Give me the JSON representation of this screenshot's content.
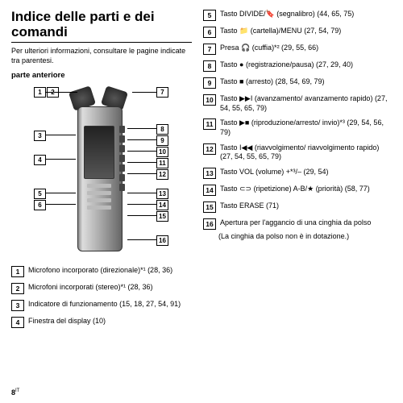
{
  "title": "Indice delle parti e dei comandi",
  "intro": "Per ulteriori informazioni, consultare le pagine indicate tra parentesi.",
  "subhead": "parte anteriore",
  "page_number": "8",
  "page_lang_mark": "IT",
  "callout_labels": [
    "1",
    "2",
    "3",
    "4",
    "5",
    "6",
    "7",
    "8",
    "9",
    "10",
    "11",
    "12",
    "13",
    "14",
    "15",
    "16"
  ],
  "left_items": [
    {
      "n": "1",
      "t": "Microfono incorporato (direzionale)*¹ (28, 36)"
    },
    {
      "n": "2",
      "t": "Microfoni incorporati (stereo)*¹ (28, 36)"
    },
    {
      "n": "3",
      "t": "Indicatore di funzionamento (15, 18, 27, 54, 91)"
    },
    {
      "n": "4",
      "t": "Finestra del display (10)"
    }
  ],
  "right_items": [
    {
      "n": "5",
      "t": "Tasto DIVIDE/🔖 (segnalibro) (44, 65, 75)"
    },
    {
      "n": "6",
      "t": "Tasto 📁 (cartella)/MENU (27, 54, 79)"
    },
    {
      "n": "7",
      "t": "Presa 🎧 (cuffia)*² (29, 55, 66)"
    },
    {
      "n": "8",
      "t": "Tasto ● (registrazione/pausa) (27, 29, 40)"
    },
    {
      "n": "9",
      "t": "Tasto ■ (arresto) (28, 54, 69, 79)"
    },
    {
      "n": "10",
      "t": "Tasto ▶▶I (avanzamento/ avanzamento rapido) (27, 54, 55, 65, 79)"
    },
    {
      "n": "11",
      "t": "Tasto ▶■ (riproduzione/arresto/ invio)*³ (29, 54, 56, 79)"
    },
    {
      "n": "12",
      "t": "Tasto I◀◀ (riavvolgimento/ riavvolgimento rapido) (27, 54, 55, 65, 79)"
    },
    {
      "n": "13",
      "t": "Tasto VOL (volume) +*³/– (29, 54)"
    },
    {
      "n": "14",
      "t": "Tasto ⊂⊃ (ripetizione) A-B/★ (priorità) (58, 77)"
    },
    {
      "n": "15",
      "t": "Tasto ERASE (71)"
    },
    {
      "n": "16",
      "t": "Apertura per l'aggancio di una cinghia da polso"
    }
  ],
  "note_16": "(La cinghia da polso non è in dotazione.)"
}
